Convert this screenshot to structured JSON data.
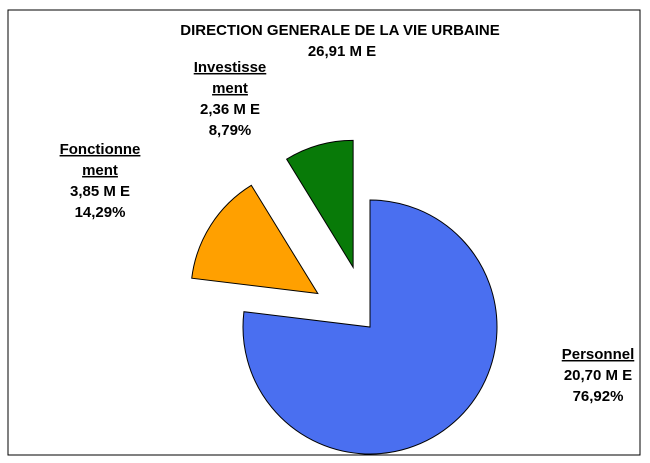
{
  "chart_data": {
    "type": "pie",
    "title": "DIRECTION GENERALE DE LA VIE URBAINE",
    "subtitle": "26,91 M E",
    "categories": [
      [
        "Personnel"
      ],
      [
        "Fonctionne",
        "ment"
      ],
      [
        "Investisse",
        "ment"
      ]
    ],
    "values": [
      20.7,
      3.85,
      2.36
    ],
    "value_labels": [
      "20,70 M E",
      "3,85 M E",
      "2,36 M E"
    ],
    "percents": [
      76.92,
      14.29,
      8.79
    ],
    "percent_labels": [
      "76,92%",
      "14,29%",
      "8,79%"
    ],
    "colors": [
      "#4a6ff0",
      "#ffa000",
      "#087a08"
    ],
    "exploded": [
      false,
      true,
      true
    ]
  }
}
